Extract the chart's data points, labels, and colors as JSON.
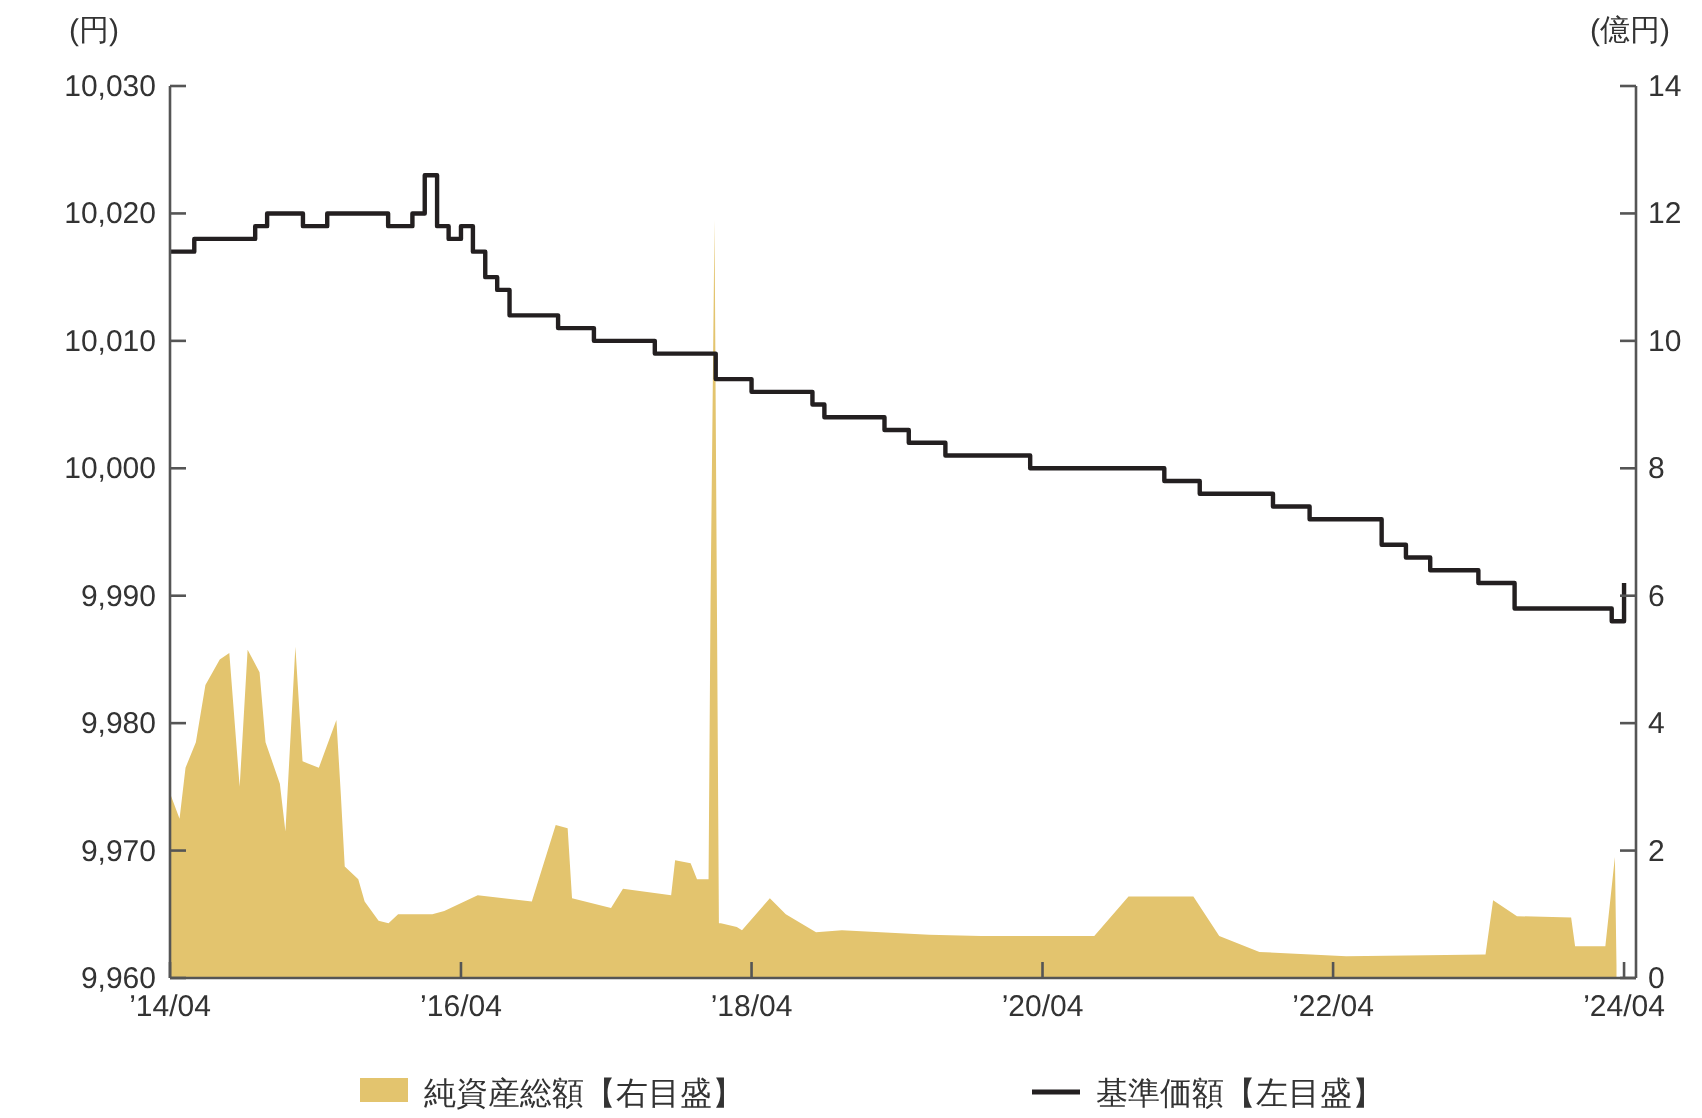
{
  "chart_data": {
    "type": "area",
    "ylabel": "(円)",
    "y2label": "(億円)",
    "legend": "bottom",
    "grid": false,
    "xlim": [
      "2014-04",
      "2024-05"
    ],
    "xticks": [
      {
        "value": "2014-04",
        "label": "’14/04"
      },
      {
        "value": "2016-04",
        "label": "’16/04"
      },
      {
        "value": "2018-04",
        "label": "’18/04"
      },
      {
        "value": "2020-04",
        "label": "’20/04"
      },
      {
        "value": "2022-04",
        "label": "’22/04"
      },
      {
        "value": "2024-04",
        "label": "’24/04"
      }
    ],
    "ylim": [
      9960,
      10030
    ],
    "yticks": [
      {
        "value": 9960,
        "label": "9,960"
      },
      {
        "value": 9970,
        "label": "9,970"
      },
      {
        "value": 9980,
        "label": "9,980"
      },
      {
        "value": 9990,
        "label": "9,990"
      },
      {
        "value": 10000,
        "label": "10,000"
      },
      {
        "value": 10010,
        "label": "10,010"
      },
      {
        "value": 10020,
        "label": "10,020"
      },
      {
        "value": 10030,
        "label": "10,030"
      }
    ],
    "y2lim": [
      0,
      14
    ],
    "y2ticks": [
      0,
      2,
      4,
      6,
      8,
      10,
      12,
      14
    ],
    "series": [
      {
        "name": "純資産総額【右目盛】",
        "type": "area",
        "axis": "y2",
        "color": "#e3c46e",
        "x": [
          "2014-04-01",
          "2014-04-25",
          "2014-05-10",
          "2014-06-05",
          "2014-06-29",
          "2014-08-04",
          "2014-08-28",
          "2014-09-23",
          "2014-10-13",
          "2014-11-12",
          "2014-11-27",
          "2015-01-02",
          "2015-01-16",
          "2015-02-10",
          "2015-02-28",
          "2015-04-10",
          "2015-05-24",
          "2015-06-04",
          "2015-06-14",
          "2015-07-18",
          "2015-08-03",
          "2015-09-07",
          "2015-10-02",
          "2015-10-26",
          "2016-01-20",
          "2016-02-19",
          "2016-05-13",
          "2016-09-26",
          "2016-11-25",
          "2016-12-25",
          "2017-01-05",
          "2017-04-13",
          "2017-05-13",
          "2017-09-11",
          "2017-09-21",
          "2017-10-30",
          "2017-11-15",
          "2017-12-14",
          "2017-12-19",
          "2017-12-29",
          "2018-01-09",
          "2018-01-14",
          "2018-02-23",
          "2018-03-08",
          "2018-05-17",
          "2018-06-26",
          "2018-09-10",
          "2018-11-14",
          "2019-06-21",
          "2019-10-29",
          "2020-08-09",
          "2020-11-03",
          "2021-04-15",
          "2021-06-19",
          "2021-09-28",
          "2022-05-04",
          "2023-04-19",
          "2023-05-08",
          "2023-07-07",
          "2023-11-20",
          "2023-11-30",
          "2024-02-14",
          "2024-03-09",
          "2024-03-13"
        ],
        "values": [
          2.9,
          2.5,
          3.3,
          3.7,
          4.6,
          5.0,
          5.1,
          3.0,
          5.15,
          4.8,
          3.7,
          3.05,
          2.3,
          5.2,
          3.4,
          3.3,
          4.05,
          2.9,
          1.75,
          1.55,
          1.2,
          0.9,
          0.86,
          1.0,
          1.0,
          1.05,
          1.3,
          1.2,
          2.4,
          2.35,
          1.25,
          1.1,
          1.4,
          1.3,
          1.85,
          1.8,
          1.55,
          1.55,
          5.9,
          11.9,
          0.86,
          0.86,
          0.8,
          0.75,
          1.25,
          1.0,
          0.72,
          0.75,
          0.68,
          0.66,
          0.66,
          1.28,
          1.28,
          0.66,
          0.41,
          0.34,
          0.37,
          1.22,
          0.97,
          0.95,
          0.5,
          0.5,
          1.9,
          0.2
        ]
      },
      {
        "name": "基準価額【左目盛】",
        "type": "step",
        "axis": "y",
        "color": "#231f20",
        "x": [
          "2014-04",
          "2014-06",
          "2014-11",
          "2014-12",
          "2015-03",
          "2015-05",
          "2015-10",
          "2015-12",
          "2016-01",
          "2016-02",
          "2016-03",
          "2016-04",
          "2016-05",
          "2016-06",
          "2016-07",
          "2016-08",
          "2016-12",
          "2017-03",
          "2017-08",
          "2018-01",
          "2018-04",
          "2018-09",
          "2018-10",
          "2019-03",
          "2019-05",
          "2019-08",
          "2020-03",
          "2021-02",
          "2021-05",
          "2021-11",
          "2022-02",
          "2022-08",
          "2022-10",
          "2022-12",
          "2023-04",
          "2023-07",
          "2024-03",
          "2024-04"
        ],
        "values": [
          10017,
          10018,
          10019,
          10020,
          10019,
          10020,
          10019,
          10020,
          10023,
          10019,
          10018,
          10019,
          10017,
          10015,
          10014,
          10012,
          10011,
          10010,
          10009,
          10007,
          10006,
          10005,
          10004,
          10003,
          10002,
          10001,
          10000,
          9999,
          9998,
          9997,
          9996,
          9994,
          9993,
          9992,
          9991,
          9989,
          9988,
          9991
        ]
      }
    ]
  }
}
